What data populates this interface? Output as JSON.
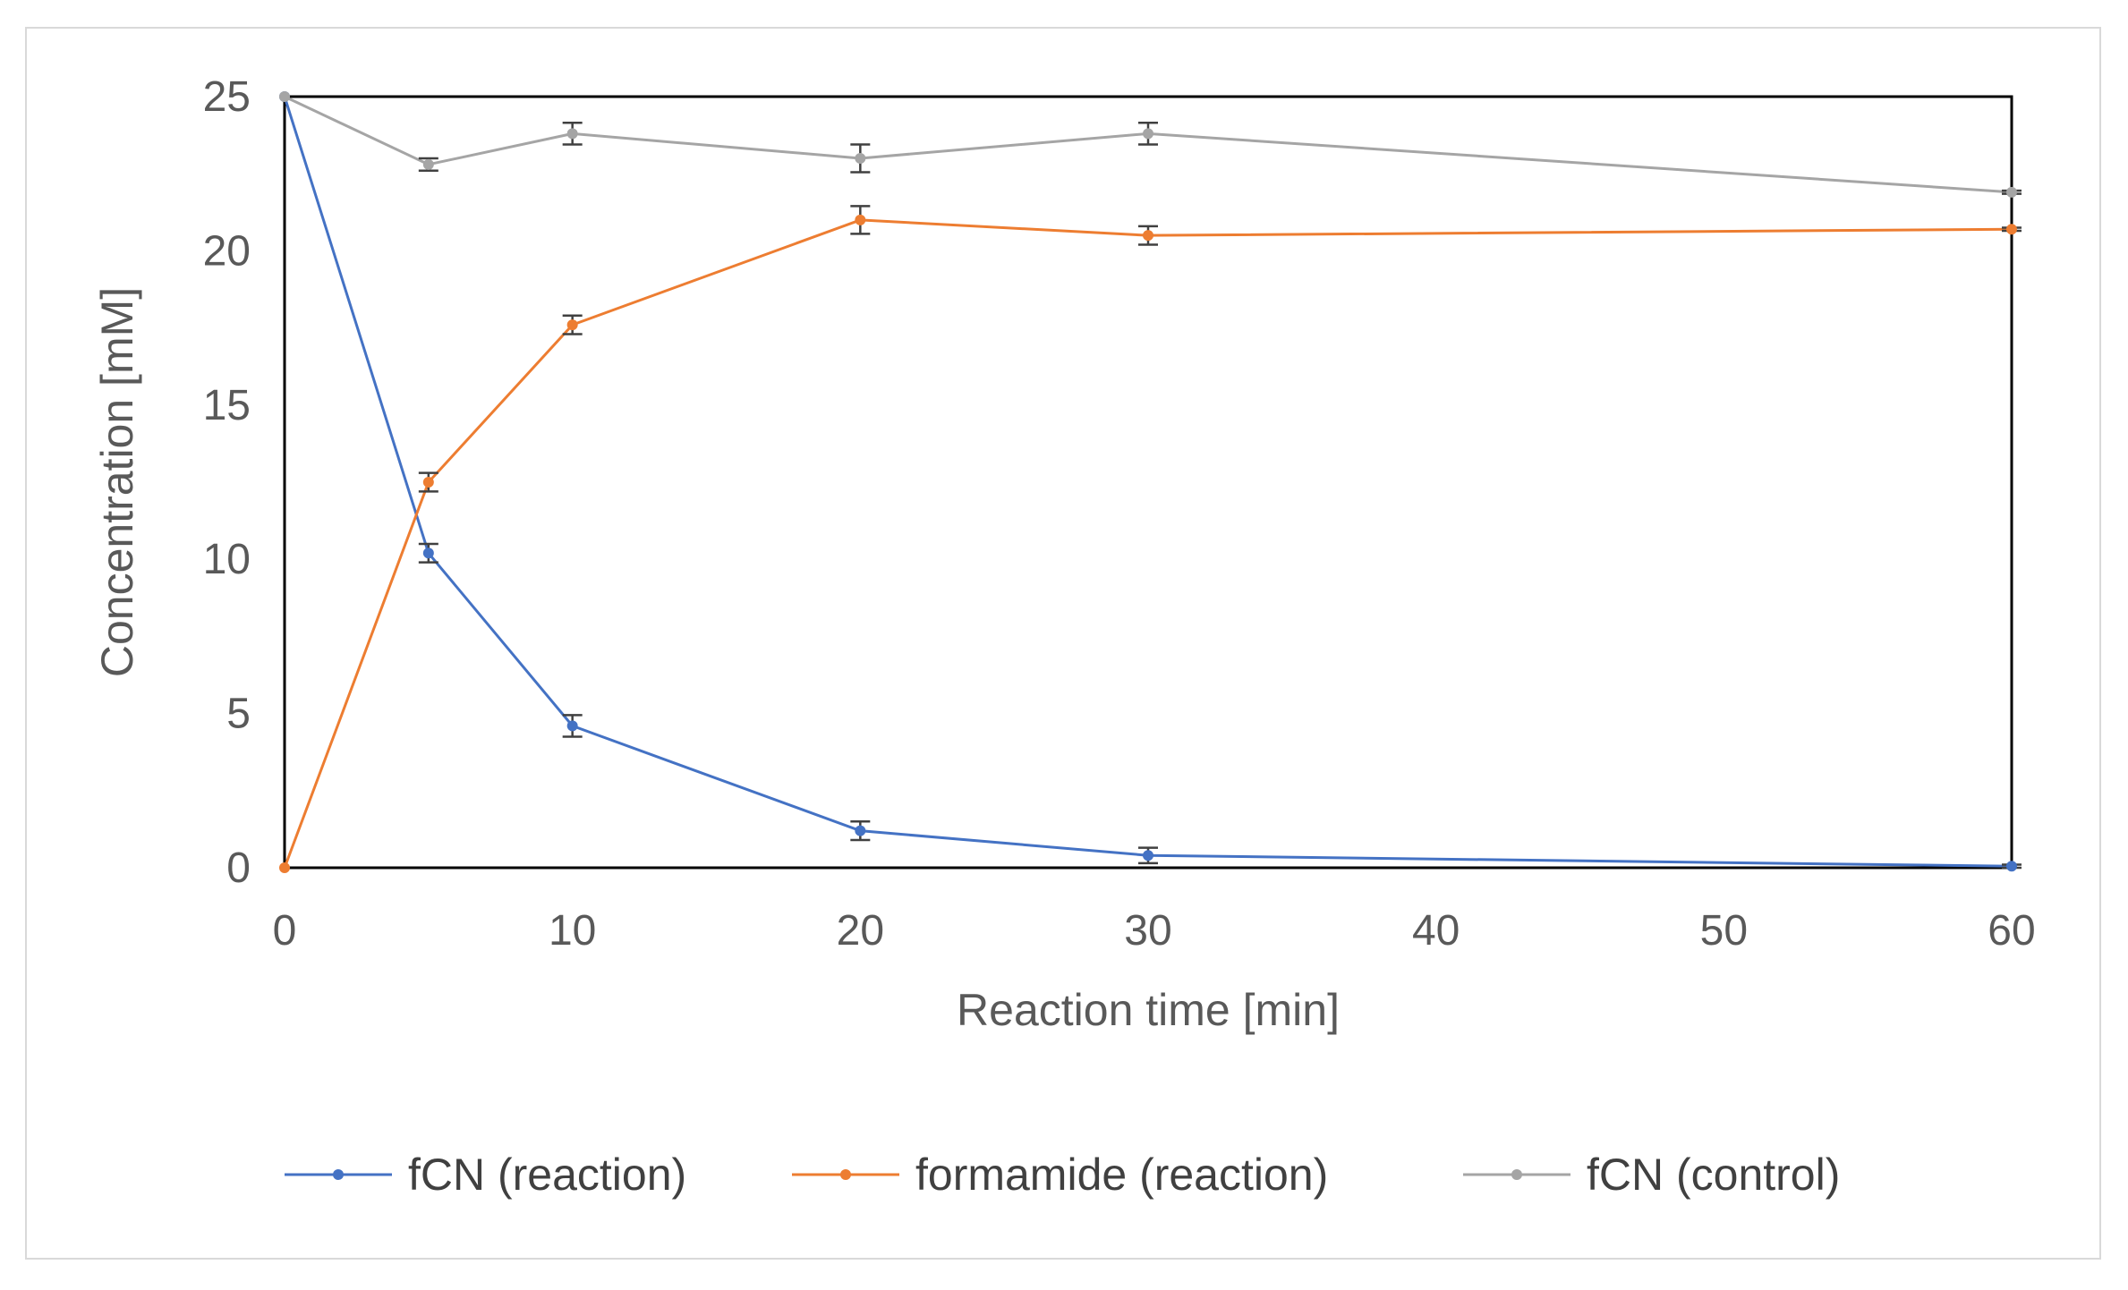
{
  "chart_data": {
    "type": "line",
    "title": "",
    "xlabel": "Reaction time [min]",
    "ylabel": "Concentration [mM]",
    "xlim": [
      0,
      60
    ],
    "ylim": [
      0,
      25
    ],
    "x_ticks": [
      0,
      10,
      20,
      30,
      40,
      50,
      60
    ],
    "y_ticks": [
      0,
      5,
      10,
      15,
      20,
      25
    ],
    "grid": false,
    "legend_position": "bottom",
    "x": [
      0,
      5,
      10,
      20,
      30,
      60
    ],
    "series": [
      {
        "name": "fCN (reaction)",
        "color": "#4472c4",
        "values": [
          25.0,
          10.2,
          4.6,
          1.2,
          0.4,
          0.05
        ],
        "errors": [
          0.0,
          0.3,
          0.35,
          0.3,
          0.25,
          0.05
        ]
      },
      {
        "name": "formamide (reaction)",
        "color": "#ed7d31",
        "values": [
          0.0,
          12.5,
          17.6,
          21.0,
          20.5,
          20.7
        ],
        "errors": [
          0.0,
          0.3,
          0.3,
          0.45,
          0.3,
          0.05
        ]
      },
      {
        "name": "fCN (control)",
        "color": "#a5a5a5",
        "values": [
          25.0,
          22.8,
          23.8,
          23.0,
          23.8,
          21.9
        ],
        "errors": [
          0.0,
          0.2,
          0.35,
          0.45,
          0.35,
          0.05
        ]
      }
    ]
  }
}
